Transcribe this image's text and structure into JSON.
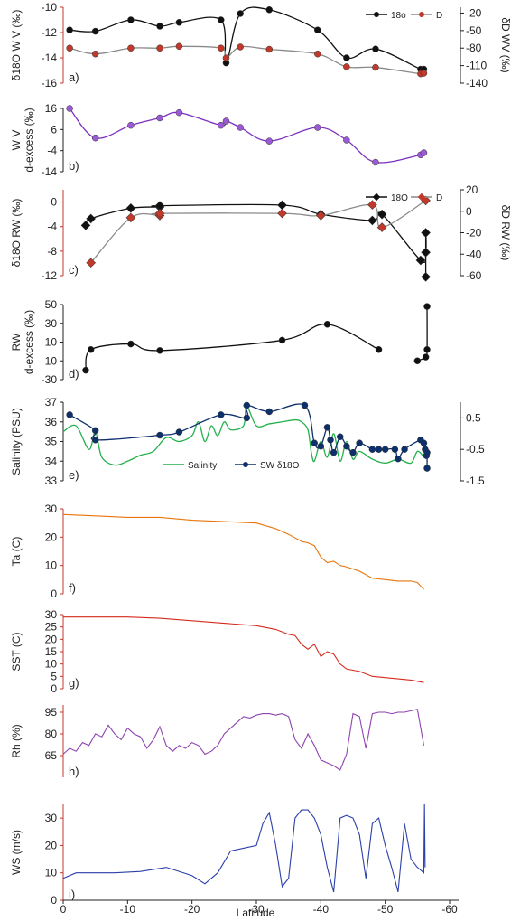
{
  "figure": {
    "xlabel": "Latitude",
    "x_ticks": [
      0,
      -10,
      -20,
      -30,
      -40,
      -50,
      -60
    ]
  },
  "chart_data": [
    {
      "type": "line",
      "panel_label": "a)",
      "ylabel": "δ18O W V (‰)",
      "y2label": "δD WV (‰)",
      "ylim": [
        -16,
        -10
      ],
      "yticks": [
        -10,
        -12,
        -14,
        -16
      ],
      "y2lim": [
        -140,
        -10
      ],
      "y2ticks": [
        -20,
        -50,
        -80,
        -110,
        -140
      ],
      "legend": [
        "18o",
        "D"
      ],
      "legend_position": "top-right",
      "series": [
        {
          "name": "18o",
          "axis": "left",
          "color": "#111111",
          "marker": "circle",
          "x": [
            -1,
            -5,
            -10.5,
            -15,
            -18,
            -24.5,
            -25.3,
            -27.5,
            -32,
            -39.5,
            -44,
            -48.5,
            -55.5,
            -56
          ],
          "y": [
            -11.8,
            -11.9,
            -11.0,
            -11.5,
            -11.2,
            -11.0,
            -14.4,
            -10.5,
            -10.2,
            -11.8,
            -14.0,
            -13.3,
            -14.9,
            -14.9
          ]
        },
        {
          "name": "D",
          "axis": "right",
          "color": "#8a8a8a",
          "marker": "circle",
          "marker_color": "#c0392b",
          "x": [
            -1,
            -5,
            -10.5,
            -15,
            -18,
            -24.5,
            -25.3,
            -27.5,
            -32,
            -39.5,
            -44,
            -48.5,
            -55.5,
            -56
          ],
          "y": [
            -80,
            -90,
            -80,
            -80,
            -77,
            -80,
            -97,
            -78,
            -82,
            -90,
            -112,
            -113,
            -124,
            -123
          ]
        }
      ]
    },
    {
      "type": "line",
      "panel_label": "b)",
      "ylabel": "W V\nd-excess (‰)",
      "ylim": [
        -14,
        16
      ],
      "yticks": [
        16,
        6,
        -4,
        -14
      ],
      "series": [
        {
          "name": "",
          "color": "#7b2fbe",
          "marker": "circle",
          "marker_color": "#9b59d6",
          "x": [
            -1,
            -5,
            -10.5,
            -15,
            -18,
            -24.5,
            -25.3,
            -27.5,
            -32,
            -39.5,
            -44,
            -48.5,
            -55.5,
            -56
          ],
          "y": [
            16,
            2,
            8,
            11.5,
            14,
            8,
            10,
            7,
            0.5,
            7,
            1,
            -9.5,
            -6,
            -5
          ]
        }
      ]
    },
    {
      "type": "line",
      "panel_label": "c)",
      "ylabel": "δ18O RW (‰)",
      "y2label": "δD RW (‰)",
      "ylim": [
        -12,
        2
      ],
      "yticks": [
        0,
        -4,
        -8,
        -12
      ],
      "y2lim": [
        -60,
        20
      ],
      "y2ticks": [
        20,
        0,
        -20,
        -40,
        -60
      ],
      "legend": [
        "18O",
        "D"
      ],
      "legend_position": "top-right",
      "series": [
        {
          "name": "18O",
          "axis": "left",
          "color": "#111111",
          "marker": "diamond",
          "x": [
            -3.5,
            -4.3,
            -10.5,
            -15,
            -15,
            -34,
            -40,
            -48,
            -49.5,
            -55.5,
            -56.3,
            -56.3,
            -56.3
          ],
          "y": [
            -3.8,
            -2.7,
            -1.0,
            -0.8,
            -0.6,
            -0.5,
            -2.0,
            -3.0,
            -2.0,
            -9.5,
            -8.2,
            -5.0,
            -12.2
          ]
        },
        {
          "name": "D",
          "axis": "right",
          "color": "#8a8a8a",
          "marker": "diamond",
          "marker_color": "#c0392b",
          "x": [
            -4.3,
            -10.5,
            -15,
            -15,
            -34,
            -40,
            -48,
            -49.5,
            -56.3
          ],
          "y": [
            -48,
            -6,
            -4,
            -2,
            -2,
            -4,
            6,
            -15,
            10
          ]
        }
      ]
    },
    {
      "type": "line",
      "panel_label": "d)",
      "ylabel": "RW\nd-excess (‰)",
      "ylim": [
        -30,
        50
      ],
      "yticks": [
        50,
        30,
        10,
        -10,
        -30
      ],
      "series": [
        {
          "name": "",
          "color": "#111111",
          "marker": "circle",
          "x": [
            -3.5,
            -4.3,
            -10.5,
            -15,
            -34,
            -41,
            -49
          ],
          "y": [
            -20,
            2,
            8,
            1,
            12,
            29,
            2
          ]
        },
        {
          "name": "",
          "color": "#111111",
          "marker": "circle",
          "x": [
            -55,
            -56.3,
            -56.5,
            -56.5
          ],
          "y": [
            -10,
            -6,
            2,
            48
          ]
        }
      ]
    },
    {
      "type": "line",
      "panel_label": "e)",
      "ylabel": "Salinity (PSU)",
      "ylim": [
        33,
        37
      ],
      "yticks": [
        37,
        36,
        35,
        34,
        33
      ],
      "y2lim": [
        -1.5,
        1.0
      ],
      "y2ticks": [
        0.5,
        -0.5,
        -1.5
      ],
      "legend": [
        "Salinity",
        "SW δ18O"
      ],
      "legend_position": "bottom-center",
      "series": [
        {
          "name": "Salinity",
          "axis": "left",
          "color": "#22b14c",
          "x": [
            0,
            -2,
            -4,
            -5,
            -6,
            -8,
            -10,
            -12,
            -14,
            -16,
            -18,
            -20,
            -21,
            -22,
            -23,
            -24,
            -25,
            -26,
            -28,
            -28.5,
            -30,
            -32,
            -34,
            -36,
            -37,
            -38,
            -38.5,
            -39,
            -40,
            -41,
            -42,
            -43,
            -44,
            -45,
            -46,
            -48,
            -50,
            -52,
            -54,
            -55,
            -56
          ],
          "y": [
            35.5,
            35.8,
            34.6,
            35.5,
            34.2,
            33.8,
            34.0,
            34.3,
            34.5,
            35.2,
            35.0,
            35.3,
            36.0,
            35.0,
            35.8,
            35.3,
            36.0,
            35.6,
            35.8,
            36.8,
            35.8,
            35.9,
            36.0,
            36.1,
            36.0,
            35.6,
            34.5,
            34.0,
            35.0,
            34.2,
            35.4,
            34.0,
            35.0,
            34.1,
            34.5,
            34.1,
            33.9,
            34.1,
            33.9,
            34.5,
            34.2
          ]
        },
        {
          "name": "SW δ18O",
          "axis": "right",
          "color": "#0d2f6b",
          "marker": "circle",
          "x": [
            -1,
            -5,
            -5,
            -15,
            -18,
            -24.5,
            -28.5,
            -28.5,
            -32,
            -37.5,
            -39,
            -40,
            -41,
            -41.5,
            -42,
            -43,
            -44,
            -45,
            -46,
            -48,
            -49,
            -50,
            -51.5,
            -52,
            -53,
            -55.5,
            -56,
            -56.2,
            -56.4,
            -56.5,
            -56.5
          ],
          "y": [
            0.6,
            0.1,
            -0.2,
            -0.05,
            0.05,
            0.6,
            0.5,
            0.9,
            0.7,
            0.9,
            -0.3,
            -0.4,
            0.2,
            -0.2,
            -0.6,
            -0.1,
            -0.4,
            -0.6,
            -0.3,
            -0.5,
            -0.5,
            -0.5,
            -0.5,
            -0.8,
            -0.5,
            -0.2,
            -0.3,
            -0.5,
            -0.7,
            -0.6,
            -1.1
          ]
        }
      ]
    },
    {
      "type": "line",
      "panel_label": "f)",
      "ylabel": "Ta (C)",
      "ylim": [
        0,
        30
      ],
      "yticks": [
        30,
        20,
        10,
        0
      ],
      "series": [
        {
          "name": "",
          "color": "#e8740c",
          "x": [
            0,
            -5,
            -10,
            -15,
            -20,
            -25,
            -30,
            -33,
            -35,
            -37,
            -38,
            -39,
            -40,
            -41,
            -42,
            -43,
            -44,
            -46,
            -48,
            -50,
            -52,
            -54,
            -55,
            -56
          ],
          "y": [
            28,
            27.5,
            27,
            27,
            26,
            25.5,
            25,
            23,
            21,
            18.5,
            18,
            17,
            13,
            11,
            11.5,
            10,
            9.5,
            8,
            5.5,
            5,
            4.5,
            4.5,
            4,
            1.5
          ]
        }
      ]
    },
    {
      "type": "line",
      "panel_label": "g)",
      "ylabel": "SST (C)",
      "ylim": [
        0,
        30
      ],
      "yticks": [
        30,
        25,
        20,
        15,
        10,
        5,
        0
      ],
      "series": [
        {
          "name": "",
          "color": "#d42a1e",
          "x": [
            0,
            -5,
            -10,
            -15,
            -20,
            -25,
            -30,
            -33,
            -35,
            -36,
            -37,
            -38,
            -39,
            -40,
            -41,
            -42,
            -43,
            -44,
            -46,
            -48,
            -50,
            -52,
            -54,
            -56
          ],
          "y": [
            29,
            29,
            29,
            28.5,
            27.5,
            26.5,
            25.5,
            24,
            22,
            21.5,
            18,
            16,
            18,
            13,
            15,
            14,
            10,
            8,
            7,
            5,
            4.5,
            4,
            3.5,
            2.5
          ]
        }
      ]
    },
    {
      "type": "line",
      "panel_label": "h)",
      "ylabel": "Rh (%)",
      "ylim": [
        50,
        100
      ],
      "yticks": [
        95,
        80,
        65
      ],
      "series": [
        {
          "name": "",
          "color": "#8e44ad",
          "x": [
            0,
            -1,
            -2,
            -3,
            -4,
            -5,
            -6,
            -7,
            -8,
            -9,
            -10,
            -11,
            -12,
            -13,
            -14,
            -15,
            -16,
            -17,
            -18,
            -19,
            -20,
            -21,
            -22,
            -23,
            -24,
            -25,
            -26,
            -27,
            -28,
            -29,
            -30,
            -31,
            -32,
            -33,
            -34,
            -35,
            -36,
            -37,
            -38,
            -39,
            -40,
            -41,
            -42,
            -43,
            -44,
            -45,
            -46,
            -47,
            -48,
            -49,
            -50,
            -51,
            -52,
            -53,
            -54,
            -55,
            -56
          ],
          "y": [
            66,
            70,
            68,
            74,
            72,
            80,
            78,
            86,
            80,
            76,
            84,
            80,
            78,
            70,
            76,
            85,
            72,
            68,
            72,
            70,
            74,
            72,
            66,
            68,
            72,
            80,
            84,
            88,
            92,
            91,
            93,
            94,
            94,
            93,
            94,
            92,
            76,
            70,
            80,
            72,
            62,
            60,
            58,
            55,
            66,
            94,
            92,
            70,
            94,
            95,
            95,
            94,
            95,
            95,
            96,
            97,
            72
          ]
        }
      ]
    },
    {
      "type": "line",
      "panel_label": "i)",
      "ylabel": "WS (m/s)",
      "ylim": [
        0,
        35
      ],
      "yticks": [
        30,
        20,
        10,
        0
      ],
      "series": [
        {
          "name": "",
          "color": "#2b3fa8",
          "x": [
            0,
            -2,
            -5,
            -8,
            -12,
            -16,
            -20,
            -22,
            -24,
            -26,
            -28,
            -30,
            -31,
            -32,
            -33,
            -34,
            -35,
            -36,
            -37,
            -38,
            -39,
            -40,
            -41,
            -42,
            -43,
            -44,
            -45,
            -46,
            -47,
            -48,
            -49,
            -50,
            -51,
            -52,
            -53,
            -54,
            -55,
            -56,
            -56.1,
            -56.2
          ],
          "y": [
            8,
            10,
            10,
            10,
            10.5,
            12,
            9,
            6,
            10,
            18,
            19,
            20,
            28,
            32,
            20,
            5,
            8,
            30,
            33,
            33,
            30,
            24,
            12,
            3,
            30,
            31,
            30,
            24,
            8,
            28,
            30,
            20,
            12,
            3,
            28,
            15,
            12,
            10,
            35,
            12
          ]
        }
      ]
    }
  ]
}
